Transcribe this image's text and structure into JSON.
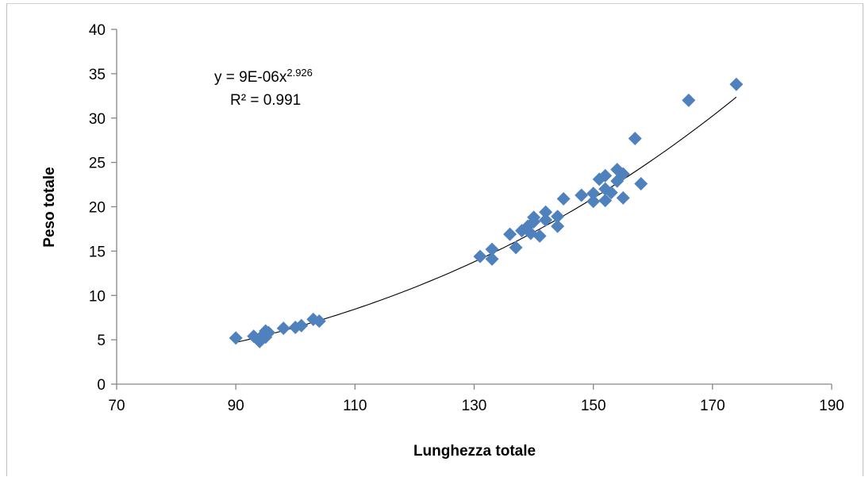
{
  "chart_data": {
    "type": "scatter",
    "xlabel": "Lunghezza totale",
    "ylabel": "Peso totale",
    "xlim": [
      70,
      190
    ],
    "ylim": [
      0,
      40
    ],
    "xticks": [
      70,
      90,
      110,
      130,
      150,
      170,
      190
    ],
    "yticks": [
      0,
      5,
      10,
      15,
      20,
      25,
      30,
      35,
      40
    ],
    "grid": false,
    "marker_color": "#4f81bd",
    "trendline_color": "#000000",
    "trendline": {
      "type": "power",
      "coefficient": 9e-06,
      "exponent": 2.926,
      "x_range": [
        90,
        174
      ],
      "equation_text": "y = 9E-06x",
      "equation_exponent": "2.926",
      "r2_text": "R² = 0.991"
    },
    "series": [
      {
        "points": [
          [
            90,
            5.2
          ],
          [
            93,
            5.4
          ],
          [
            94,
            5.0
          ],
          [
            94,
            4.8
          ],
          [
            94.5,
            5.5
          ],
          [
            95,
            5.3
          ],
          [
            95,
            6.0
          ],
          [
            95.5,
            5.8
          ],
          [
            98,
            6.3
          ],
          [
            100,
            6.4
          ],
          [
            101,
            6.6
          ],
          [
            103,
            7.3
          ],
          [
            104,
            7.1
          ],
          [
            131,
            14.4
          ],
          [
            133,
            15.2
          ],
          [
            133,
            14.1
          ],
          [
            136,
            16.9
          ],
          [
            137,
            15.4
          ],
          [
            138,
            17.3
          ],
          [
            139,
            17.8
          ],
          [
            139.5,
            17.0
          ],
          [
            140,
            18.3
          ],
          [
            140,
            18.8
          ],
          [
            141,
            16.7
          ],
          [
            142,
            18.5
          ],
          [
            142,
            19.4
          ],
          [
            144,
            17.8
          ],
          [
            144,
            18.9
          ],
          [
            145,
            20.9
          ],
          [
            148,
            21.3
          ],
          [
            150,
            20.6
          ],
          [
            150,
            21.5
          ],
          [
            151,
            23.1
          ],
          [
            152,
            23.5
          ],
          [
            152,
            22.0
          ],
          [
            152,
            20.7
          ],
          [
            153,
            21.6
          ],
          [
            154,
            22.9
          ],
          [
            154,
            24.2
          ],
          [
            155,
            23.7
          ],
          [
            155,
            21.0
          ],
          [
            157,
            27.7
          ],
          [
            158,
            22.6
          ],
          [
            166,
            32.0
          ],
          [
            174,
            33.8
          ]
        ]
      }
    ]
  }
}
